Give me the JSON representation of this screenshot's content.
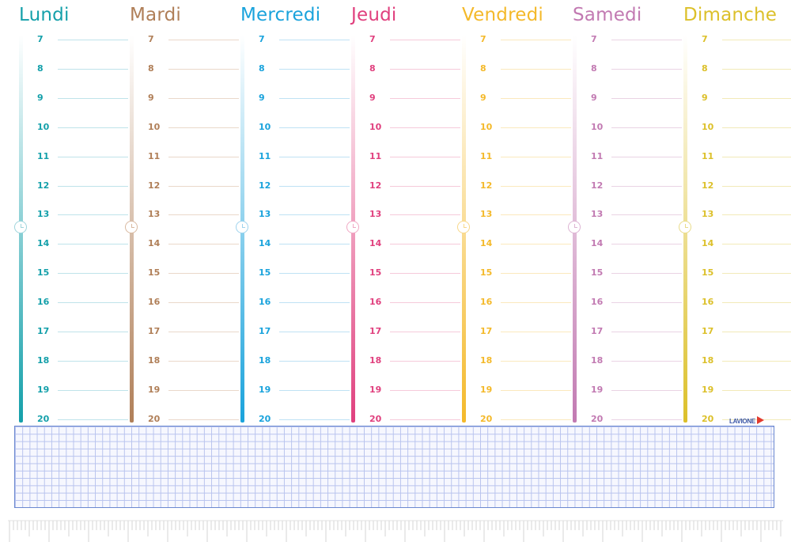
{
  "days": [
    {
      "name": "Lundi",
      "color": "#14a0aa",
      "line": "#bfe3ea",
      "clock": "#9fd5dc"
    },
    {
      "name": "Mardi",
      "color": "#b07f58",
      "line": "#ead8ca",
      "clock": "#d9b9a0"
    },
    {
      "name": "Mercredi",
      "color": "#1aa3dc",
      "line": "#bfe2f4",
      "clock": "#9fd3ee"
    },
    {
      "name": "Jeudi",
      "color": "#e0407e",
      "line": "#f6cada",
      "clock": "#f0a9c4"
    },
    {
      "name": "Vendredi",
      "color": "#f4b92a",
      "line": "#fbe9bd",
      "clock": "#f8d88a"
    },
    {
      "name": "Samedi",
      "color": "#c27ab2",
      "line": "#ead3e4",
      "clock": "#ddb4d3"
    },
    {
      "name": "Dimanche",
      "color": "#dcc02a",
      "line": "#f2eab8",
      "clock": "#e9dc8a"
    }
  ],
  "hours": [
    "7",
    "8",
    "9",
    "10",
    "11",
    "12",
    "13",
    "14",
    "15",
    "16",
    "17",
    "18",
    "19",
    "20"
  ],
  "logo": {
    "text": "LAVIONE"
  },
  "colors": {
    "grid_border": "#6a88d0",
    "grid_line": "#b8c3ee",
    "logo_arrow": "#e23a2e"
  }
}
